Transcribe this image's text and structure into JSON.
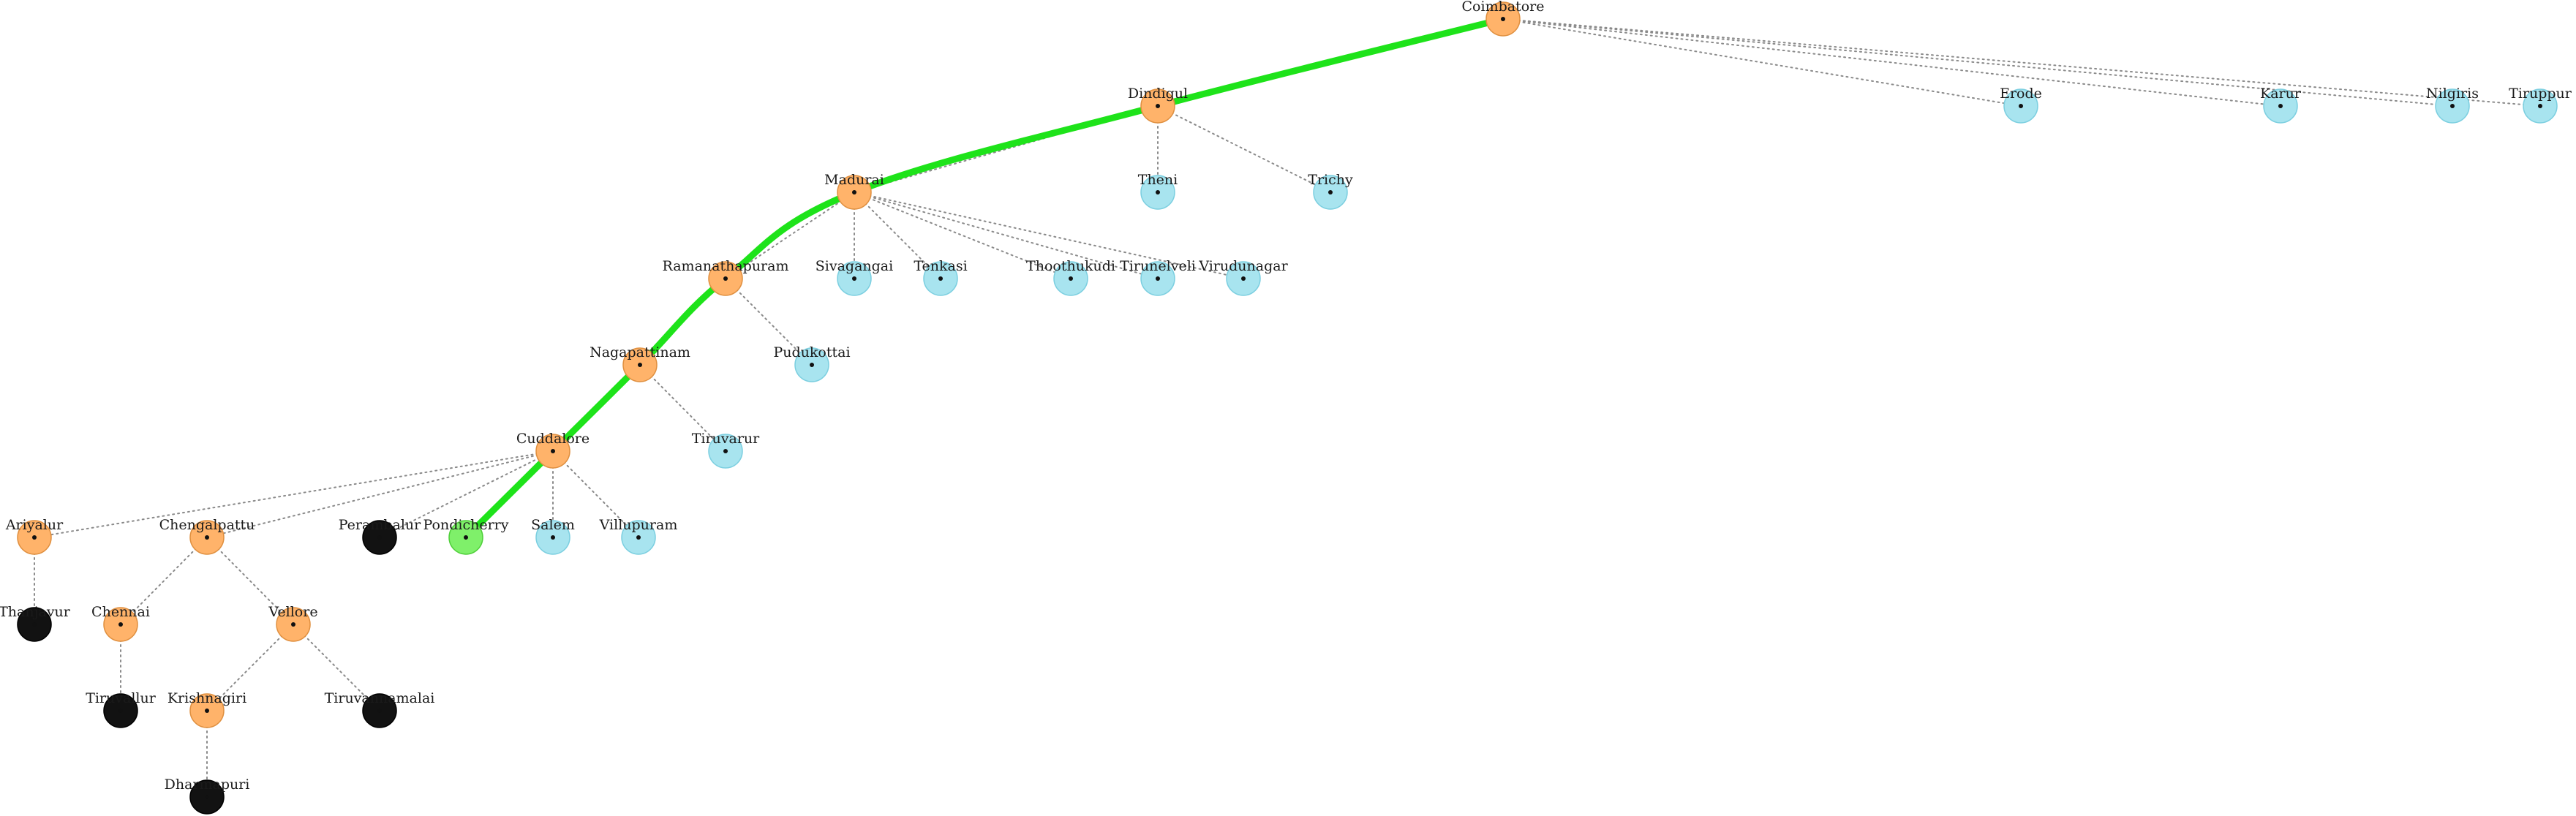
{
  "colors": {
    "visited": "#ffb36a",
    "visited_stroke": "#e09040",
    "frontier": "#a8e4ef",
    "frontier_stroke": "#7ccfe0",
    "dead_end": "#121212",
    "dead_end_stroke": "#000000",
    "goal": "#7ff06a",
    "goal_stroke": "#4fcf3a",
    "path": "#1ee31a",
    "edge": "#8a8a8a"
  },
  "nodes": [
    {
      "id": "coimbatore",
      "label": "Coimbatore",
      "status": "visited"
    },
    {
      "id": "dindigul",
      "label": "Dindigul",
      "status": "visited"
    },
    {
      "id": "erode",
      "label": "Erode",
      "status": "frontier"
    },
    {
      "id": "karur",
      "label": "Karur",
      "status": "frontier"
    },
    {
      "id": "nilgiris",
      "label": "Nilgiris",
      "status": "frontier"
    },
    {
      "id": "tiruppur",
      "label": "Tiruppur",
      "status": "frontier"
    },
    {
      "id": "madurai",
      "label": "Madurai",
      "status": "visited"
    },
    {
      "id": "theni",
      "label": "Theni",
      "status": "frontier"
    },
    {
      "id": "trichy",
      "label": "Trichy",
      "status": "frontier"
    },
    {
      "id": "ramanathapuram",
      "label": "Ramanathapuram",
      "status": "visited"
    },
    {
      "id": "sivagangai",
      "label": "Sivagangai",
      "status": "frontier"
    },
    {
      "id": "tenkasi",
      "label": "Tenkasi",
      "status": "frontier"
    },
    {
      "id": "thoothukudi",
      "label": "Thoothukudi",
      "status": "frontier"
    },
    {
      "id": "tirunelveli",
      "label": "Tirunelveli",
      "status": "frontier"
    },
    {
      "id": "virudunagar",
      "label": "Virudunagar",
      "status": "frontier"
    },
    {
      "id": "nagapattinam",
      "label": "Nagapattinam",
      "status": "visited"
    },
    {
      "id": "pudukottai",
      "label": "Pudukottai",
      "status": "frontier"
    },
    {
      "id": "cuddalore",
      "label": "Cuddalore",
      "status": "visited"
    },
    {
      "id": "tiruvarur",
      "label": "Tiruvarur",
      "status": "frontier"
    },
    {
      "id": "ariyalur",
      "label": "Ariyalur",
      "status": "visited"
    },
    {
      "id": "chengalpattu",
      "label": "Chengalpattu",
      "status": "visited"
    },
    {
      "id": "perambalur",
      "label": "Perambalur",
      "status": "dead_end"
    },
    {
      "id": "pondicherry",
      "label": "Pondicherry",
      "status": "goal"
    },
    {
      "id": "salem",
      "label": "Salem",
      "status": "frontier"
    },
    {
      "id": "villupuram",
      "label": "Villupuram",
      "status": "frontier"
    },
    {
      "id": "thanjavur",
      "label": "Thanjavur",
      "status": "dead_end"
    },
    {
      "id": "chennai",
      "label": "Chennai",
      "status": "visited"
    },
    {
      "id": "vellore",
      "label": "Vellore",
      "status": "visited"
    },
    {
      "id": "tiruvallur",
      "label": "Tiruvallur",
      "status": "dead_end"
    },
    {
      "id": "krishnagiri",
      "label": "Krishnagiri",
      "status": "visited"
    },
    {
      "id": "tiruvannamalai",
      "label": "Tiruvannamalai",
      "status": "dead_end"
    },
    {
      "id": "dharmapuri",
      "label": "Dharmapuri",
      "status": "dead_end"
    }
  ],
  "edges": [
    [
      "coimbatore",
      "dindigul"
    ],
    [
      "coimbatore",
      "erode"
    ],
    [
      "coimbatore",
      "karur"
    ],
    [
      "coimbatore",
      "nilgiris"
    ],
    [
      "coimbatore",
      "tiruppur"
    ],
    [
      "dindigul",
      "madurai"
    ],
    [
      "dindigul",
      "theni"
    ],
    [
      "dindigul",
      "trichy"
    ],
    [
      "madurai",
      "ramanathapuram"
    ],
    [
      "madurai",
      "sivagangai"
    ],
    [
      "madurai",
      "tenkasi"
    ],
    [
      "madurai",
      "thoothukudi"
    ],
    [
      "madurai",
      "tirunelveli"
    ],
    [
      "madurai",
      "virudunagar"
    ],
    [
      "ramanathapuram",
      "nagapattinam"
    ],
    [
      "ramanathapuram",
      "pudukottai"
    ],
    [
      "nagapattinam",
      "cuddalore"
    ],
    [
      "nagapattinam",
      "tiruvarur"
    ],
    [
      "cuddalore",
      "ariyalur"
    ],
    [
      "cuddalore",
      "chengalpattu"
    ],
    [
      "cuddalore",
      "perambalur"
    ],
    [
      "cuddalore",
      "pondicherry"
    ],
    [
      "cuddalore",
      "salem"
    ],
    [
      "cuddalore",
      "villupuram"
    ],
    [
      "ariyalur",
      "thanjavur"
    ],
    [
      "chengalpattu",
      "chennai"
    ],
    [
      "chengalpattu",
      "vellore"
    ],
    [
      "chennai",
      "tiruvallur"
    ],
    [
      "vellore",
      "krishnagiri"
    ],
    [
      "vellore",
      "tiruvannamalai"
    ],
    [
      "krishnagiri",
      "dharmapuri"
    ]
  ],
  "path": [
    "coimbatore",
    "dindigul",
    "madurai",
    "ramanathapuram",
    "nagapattinam",
    "cuddalore",
    "pondicherry"
  ]
}
